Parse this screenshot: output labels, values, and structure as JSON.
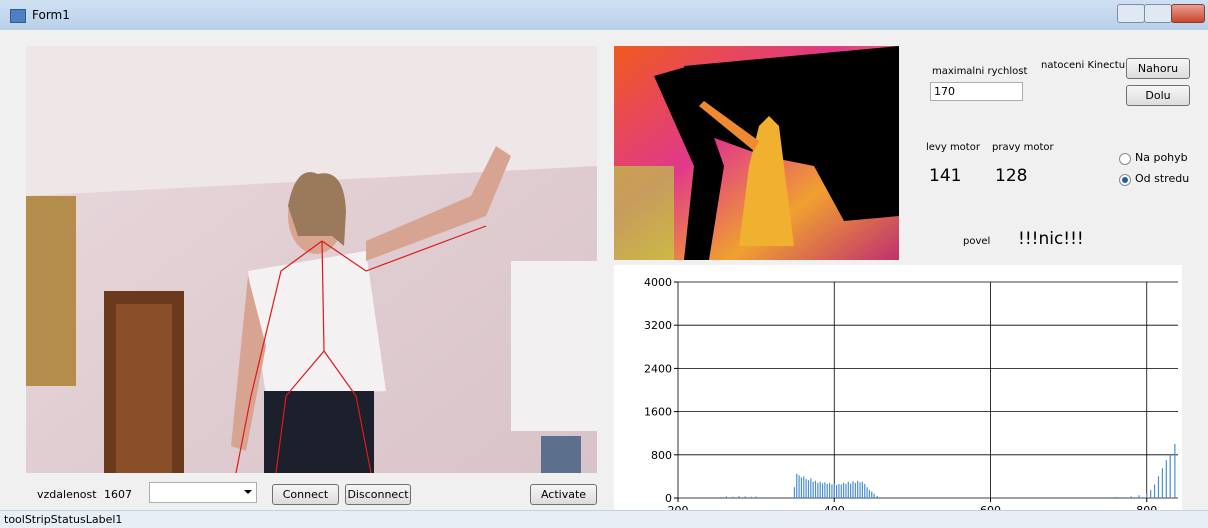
{
  "window": {
    "title": "Form1"
  },
  "controls": {
    "distance_label": "vzdalenost",
    "distance_value": 1607,
    "connect": "Connect",
    "disconnect": "Disconnect",
    "activate": "Activate",
    "max_speed_label": "maximalni rychlost",
    "max_speed_value": 170,
    "kinect_label": "natoceni Kinectu",
    "up": "Nahoru",
    "down": "Dolu",
    "left_motor_label": "levy motor",
    "left_motor_value": 141,
    "right_motor_label": "pravy motor",
    "right_motor_value": 128,
    "radio_motion": "Na pohyb",
    "radio_center": "Od stredu",
    "command_label": "povel",
    "command_value": "!!!nic!!!"
  },
  "status_bar": {
    "label": "toolStripStatusLabel1"
  },
  "chart_data": {
    "type": "bar",
    "color": "#4a8fd0",
    "x": [
      255,
      262,
      270,
      278,
      286,
      294,
      300,
      349,
      352,
      355,
      358,
      361,
      364,
      367,
      370,
      373,
      376,
      379,
      382,
      385,
      388,
      391,
      394,
      397,
      400,
      403,
      406,
      409,
      412,
      415,
      418,
      421,
      424,
      427,
      430,
      433,
      436,
      439,
      442,
      445,
      448,
      451,
      455,
      760,
      780,
      790,
      800,
      805,
      810,
      815,
      820,
      825,
      830,
      836
    ],
    "values": [
      20,
      30,
      25,
      35,
      30,
      25,
      30,
      200,
      450,
      420,
      380,
      400,
      350,
      330,
      360,
      300,
      320,
      280,
      300,
      270,
      290,
      260,
      280,
      250,
      270,
      240,
      260,
      250,
      280,
      260,
      300,
      270,
      310,
      280,
      320,
      290,
      300,
      260,
      200,
      150,
      120,
      80,
      40,
      20,
      30,
      50,
      80,
      150,
      250,
      400,
      550,
      700,
      800,
      1000
    ],
    "xlim": [
      200,
      840
    ],
    "ylim": [
      0,
      4000
    ],
    "xticks": [
      200,
      400,
      600,
      800
    ],
    "yticks": [
      0,
      800,
      1600,
      2400,
      3200,
      4000
    ]
  }
}
